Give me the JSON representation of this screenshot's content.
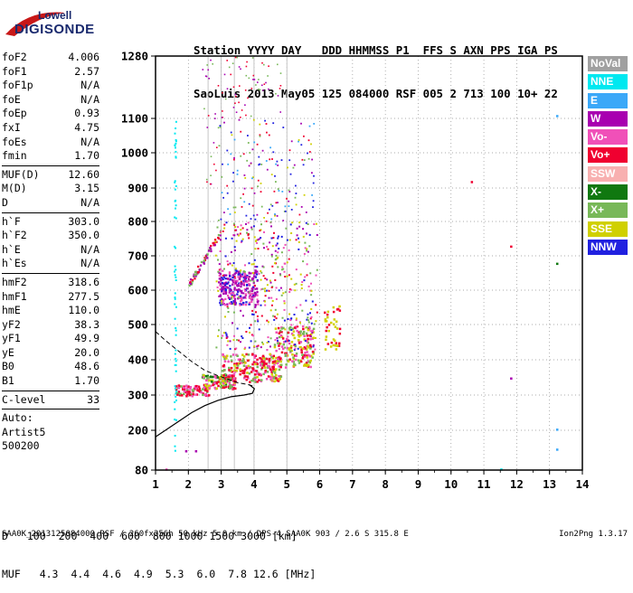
{
  "logo": {
    "line1": "Lowell",
    "line2": "DIGISONDE"
  },
  "header": {
    "line1": "Station YYYY DAY   DDD HHMMSS P1  FFS S AXN PPS IGA PS",
    "line2": "SaoLuis 2013 May05 125 084000 RSF 005 2 713 100 10+ 22"
  },
  "parameters": {
    "group1": [
      {
        "label": "foF2",
        "value": "4.006"
      },
      {
        "label": "foF1",
        "value": "2.57"
      },
      {
        "label": "foF1p",
        "value": "N/A"
      },
      {
        "label": "foE",
        "value": "N/A"
      },
      {
        "label": "foEp",
        "value": "0.93"
      },
      {
        "label": "fxI",
        "value": "4.75"
      },
      {
        "label": "foEs",
        "value": "N/A"
      },
      {
        "label": "fmin",
        "value": "1.70"
      }
    ],
    "group2": [
      {
        "label": "MUF(D)",
        "value": "12.60"
      },
      {
        "label": "M(D)",
        "value": "3.15"
      },
      {
        "label": "D",
        "value": "N/A"
      }
    ],
    "group3": [
      {
        "label": "h`F",
        "value": "303.0"
      },
      {
        "label": "h`F2",
        "value": "350.0"
      },
      {
        "label": "h`E",
        "value": "N/A"
      },
      {
        "label": "h`Es",
        "value": "N/A"
      }
    ],
    "group4": [
      {
        "label": "hmF2",
        "value": "318.6"
      },
      {
        "label": "hmF1",
        "value": "277.5"
      },
      {
        "label": "hmE",
        "value": "110.0"
      },
      {
        "label": "yF2",
        "value": "38.3"
      },
      {
        "label": "yF1",
        "value": "49.9"
      },
      {
        "label": "yE",
        "value": "20.0"
      },
      {
        "label": "B0",
        "value": "48.6"
      },
      {
        "label": "B1",
        "value": "1.70"
      }
    ],
    "group5": [
      {
        "label": "C-level",
        "value": "33"
      }
    ],
    "footer_lines": [
      "Auto:",
      "Artist5",
      "500200"
    ]
  },
  "legend": [
    {
      "label": "NoVal",
      "color": "#a0a0a0"
    },
    {
      "label": "NNE",
      "color": "#00e8f0"
    },
    {
      "label": "E",
      "color": "#3aa8f8"
    },
    {
      "label": "W",
      "color": "#a800b0"
    },
    {
      "label": "Vo-",
      "color": "#f050b8"
    },
    {
      "label": "Vo+",
      "color": "#f00030"
    },
    {
      "label": "SSW",
      "color": "#f8b0b0"
    },
    {
      "label": "X-",
      "color": "#107810"
    },
    {
      "label": "X+",
      "color": "#78b858"
    },
    {
      "label": "SSE",
      "color": "#d0d000"
    },
    {
      "label": "NNW",
      "color": "#2020e0"
    }
  ],
  "muf_table": {
    "d_label": "D",
    "d_values": [
      "100",
      "200",
      "400",
      "600",
      "800",
      "1000",
      "1500",
      "3000"
    ],
    "d_unit": "[km]",
    "muf_label": "MUF",
    "muf_values": [
      "4.3",
      "4.4",
      "4.6",
      "4.9",
      "5.3",
      "6.0",
      "7.8",
      "12.6"
    ],
    "muf_unit": "[MHz]"
  },
  "footer": {
    "text": "SAA0K_2013125084000.RSF / 260fx256h 50 kHz 5.0 km / DPS-4 SAA0K 903 / 2.6 S 315.8 E",
    "version": "Ion2Png 1.3.17"
  },
  "chart_data": {
    "type": "scatter",
    "x_ticks": [
      1,
      2,
      3,
      4,
      5,
      6,
      7,
      8,
      9,
      10,
      11,
      12,
      13,
      14
    ],
    "y_ticks": [
      80,
      200,
      300,
      400,
      500,
      600,
      700,
      800,
      900,
      1000,
      1100,
      1280
    ],
    "xlim": [
      1,
      14
    ],
    "ylim": [
      80,
      1280
    ],
    "y_scale": "pseudo-log",
    "grid": true,
    "profile": {
      "x": [
        1.0,
        1.3,
        1.7,
        2.1,
        2.5,
        2.9,
        3.3,
        3.7,
        3.95,
        4.01,
        3.85
      ],
      "y": [
        180,
        200,
        225,
        250,
        270,
        285,
        295,
        300,
        305,
        318,
        330
      ]
    },
    "dashed_topside": {
      "x": [
        1.0,
        1.3,
        1.7,
        2.1,
        2.5,
        2.9,
        3.2,
        3.5,
        3.8,
        4.0
      ],
      "y": [
        480,
        455,
        425,
        395,
        370,
        355,
        345,
        335,
        330,
        325
      ]
    }
  }
}
